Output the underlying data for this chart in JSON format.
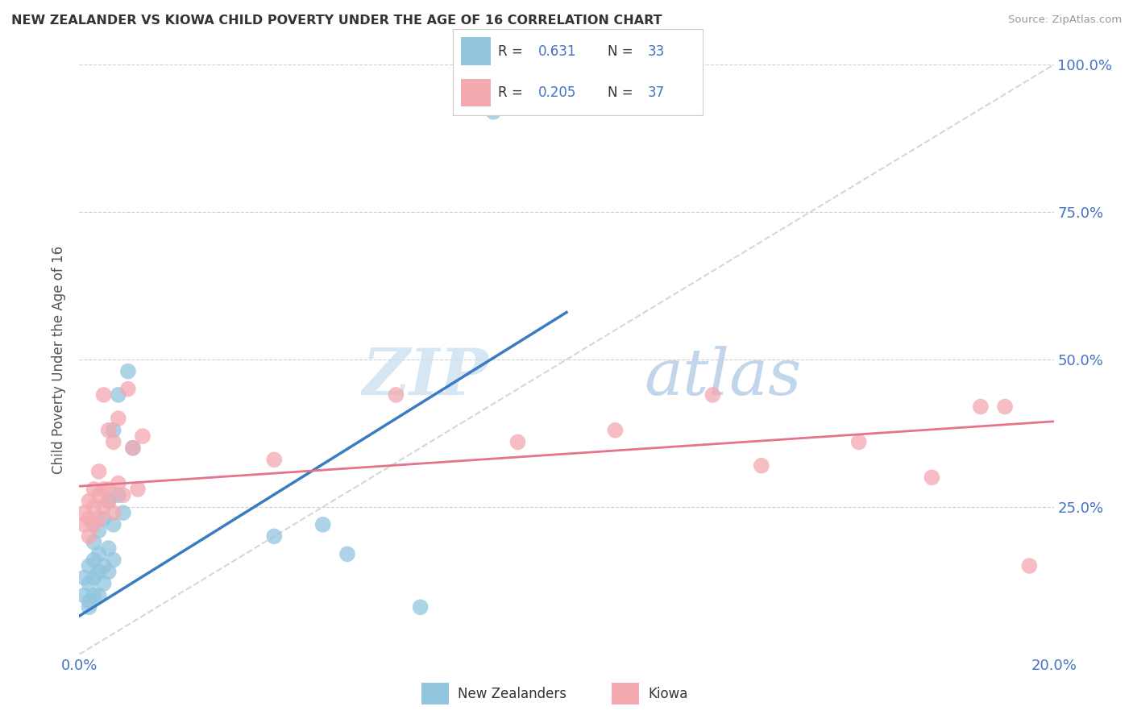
{
  "title": "NEW ZEALANDER VS KIOWA CHILD POVERTY UNDER THE AGE OF 16 CORRELATION CHART",
  "source": "Source: ZipAtlas.com",
  "ylabel": "Child Poverty Under the Age of 16",
  "x_min": 0.0,
  "x_max": 0.2,
  "y_min": 0.0,
  "y_max": 1.0,
  "x_ticks": [
    0.0,
    0.04,
    0.08,
    0.12,
    0.16,
    0.2
  ],
  "x_tick_labels": [
    "0.0%",
    "",
    "",
    "",
    "",
    "20.0%"
  ],
  "y_ticks": [
    0.0,
    0.25,
    0.5,
    0.75,
    1.0
  ],
  "y_tick_labels": [
    "",
    "25.0%",
    "50.0%",
    "75.0%",
    "100.0%"
  ],
  "color_nz": "#92c5de",
  "color_kiowa": "#f4a9b0",
  "color_nz_line": "#3a7cc1",
  "color_kiowa_line": "#e8728a",
  "color_diagonal": "#cccccc",
  "watermark_zip": "ZIP",
  "watermark_atlas": "atlas",
  "nz_points": [
    [
      0.001,
      0.1
    ],
    [
      0.001,
      0.13
    ],
    [
      0.002,
      0.08
    ],
    [
      0.002,
      0.09
    ],
    [
      0.002,
      0.12
    ],
    [
      0.002,
      0.15
    ],
    [
      0.003,
      0.1
    ],
    [
      0.003,
      0.13
    ],
    [
      0.003,
      0.16
    ],
    [
      0.003,
      0.19
    ],
    [
      0.004,
      0.1
    ],
    [
      0.004,
      0.14
    ],
    [
      0.004,
      0.17
    ],
    [
      0.004,
      0.21
    ],
    [
      0.005,
      0.12
    ],
    [
      0.005,
      0.15
    ],
    [
      0.005,
      0.23
    ],
    [
      0.006,
      0.14
    ],
    [
      0.006,
      0.18
    ],
    [
      0.006,
      0.26
    ],
    [
      0.007,
      0.16
    ],
    [
      0.007,
      0.22
    ],
    [
      0.007,
      0.38
    ],
    [
      0.008,
      0.27
    ],
    [
      0.008,
      0.44
    ],
    [
      0.009,
      0.24
    ],
    [
      0.01,
      0.48
    ],
    [
      0.011,
      0.35
    ],
    [
      0.04,
      0.2
    ],
    [
      0.05,
      0.22
    ],
    [
      0.055,
      0.17
    ],
    [
      0.07,
      0.08
    ],
    [
      0.085,
      0.92
    ]
  ],
  "kiowa_points": [
    [
      0.001,
      0.22
    ],
    [
      0.001,
      0.24
    ],
    [
      0.002,
      0.2
    ],
    [
      0.002,
      0.23
    ],
    [
      0.002,
      0.26
    ],
    [
      0.003,
      0.22
    ],
    [
      0.003,
      0.25
    ],
    [
      0.003,
      0.28
    ],
    [
      0.004,
      0.23
    ],
    [
      0.004,
      0.27
    ],
    [
      0.004,
      0.31
    ],
    [
      0.005,
      0.25
    ],
    [
      0.005,
      0.28
    ],
    [
      0.005,
      0.44
    ],
    [
      0.006,
      0.26
    ],
    [
      0.006,
      0.28
    ],
    [
      0.006,
      0.38
    ],
    [
      0.007,
      0.24
    ],
    [
      0.007,
      0.36
    ],
    [
      0.008,
      0.29
    ],
    [
      0.008,
      0.4
    ],
    [
      0.009,
      0.27
    ],
    [
      0.01,
      0.45
    ],
    [
      0.011,
      0.35
    ],
    [
      0.012,
      0.28
    ],
    [
      0.013,
      0.37
    ],
    [
      0.04,
      0.33
    ],
    [
      0.065,
      0.44
    ],
    [
      0.09,
      0.36
    ],
    [
      0.11,
      0.38
    ],
    [
      0.14,
      0.32
    ],
    [
      0.16,
      0.36
    ],
    [
      0.175,
      0.3
    ],
    [
      0.185,
      0.42
    ],
    [
      0.19,
      0.42
    ],
    [
      0.195,
      0.15
    ],
    [
      0.13,
      0.44
    ]
  ],
  "nz_line": [
    [
      0.0,
      0.065
    ],
    [
      0.1,
      0.58
    ]
  ],
  "kiowa_line": [
    [
      0.0,
      0.285
    ],
    [
      0.2,
      0.395
    ]
  ]
}
